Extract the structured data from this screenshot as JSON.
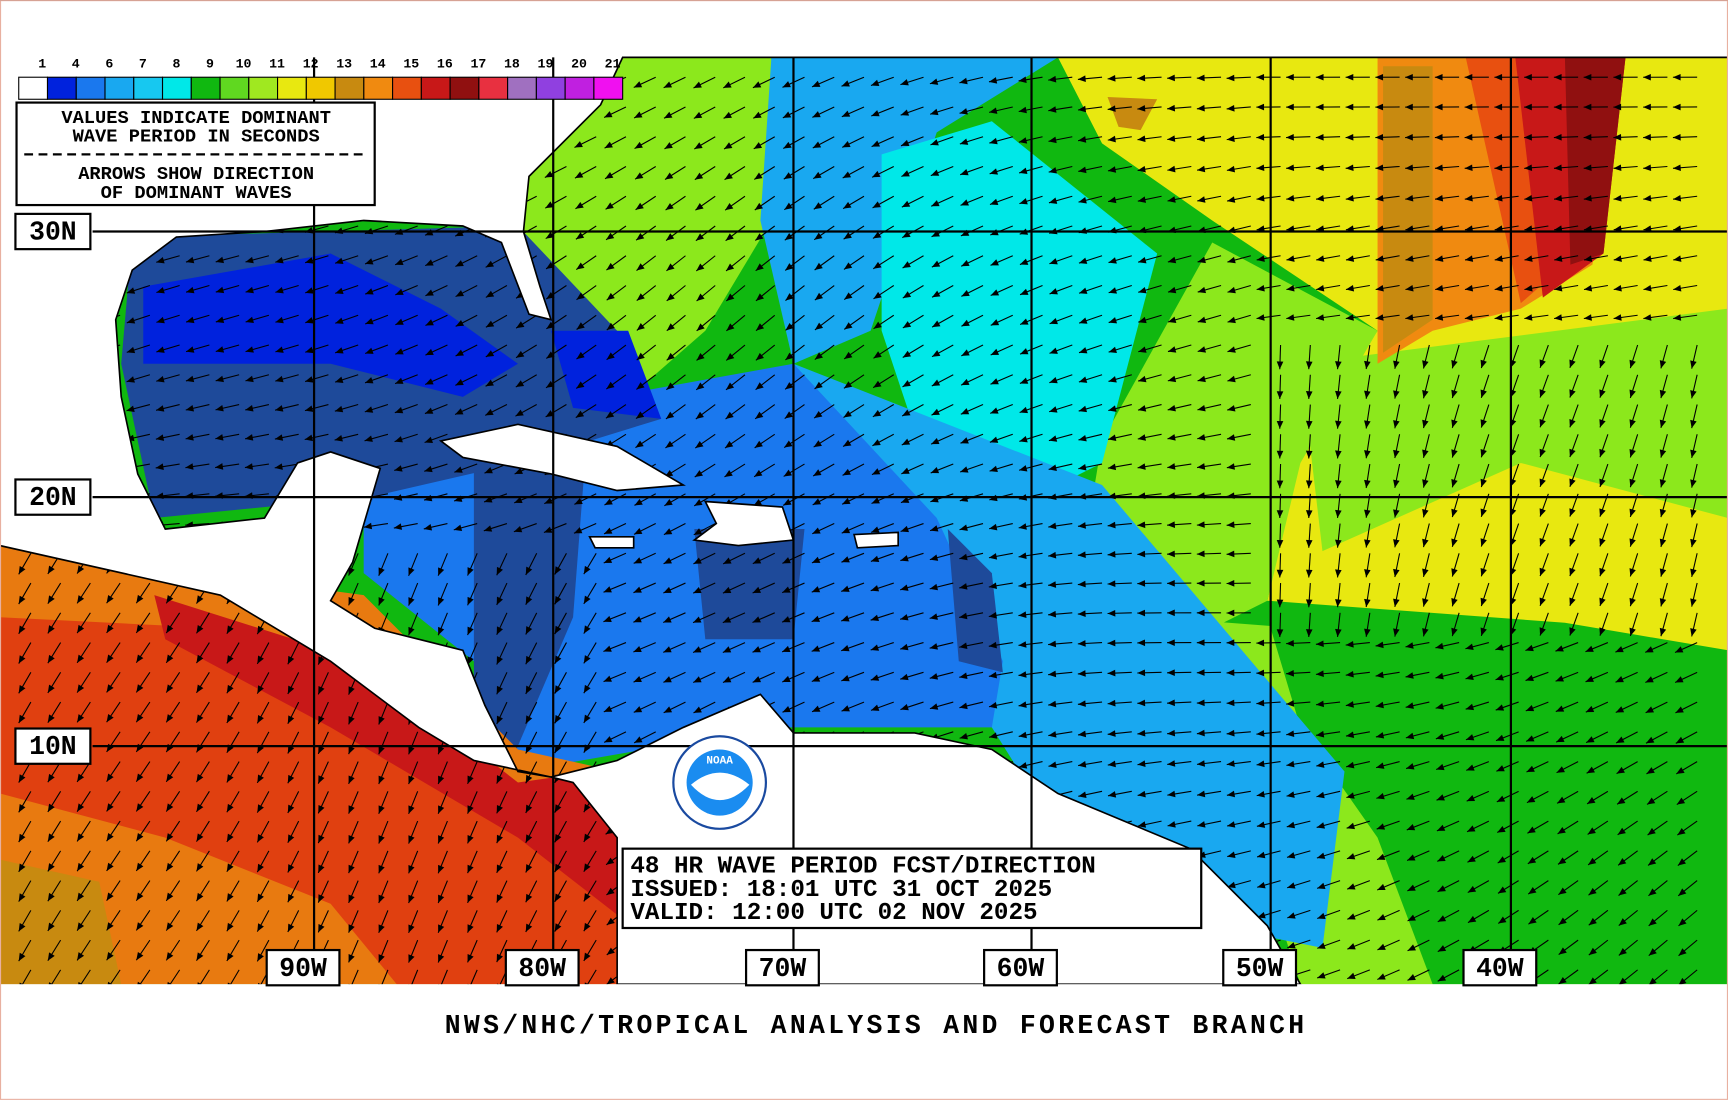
{
  "legend": {
    "labels": [
      "1",
      "4",
      "6",
      "7",
      "8",
      "9",
      "10",
      "11",
      "12",
      "13",
      "14",
      "15",
      "16",
      "17",
      "18",
      "19",
      "20",
      "21"
    ],
    "colors": [
      "#ffffff",
      "#0022dd",
      "#1a78ee",
      "#19a8f0",
      "#17c8f0",
      "#00e8e8",
      "#10b810",
      "#60d820",
      "#a0e820",
      "#e8e810",
      "#f0c800",
      "#c88a10",
      "#f08a10",
      "#e85010",
      "#c81818",
      "#901010",
      "#e83040",
      "#a070c0",
      "#9040e0",
      "#c020e0",
      "#f010f0"
    ]
  },
  "info_box": [
    "VALUES INDICATE DOMINANT",
    "WAVE PERIOD IN SECONDS",
    "ARROWS SHOW DIRECTION",
    "OF DOMINANT WAVES"
  ],
  "latitudes": [
    "30N",
    "20N",
    "10N"
  ],
  "longitudes": [
    "90W",
    "80W",
    "70W",
    "60W",
    "50W",
    "40W"
  ],
  "forecast_box": [
    "48 HR WAVE PERIOD FCST/DIRECTION",
    "ISSUED: 18:01 UTC 31 OCT 2025",
    "VALID:  12:00 UTC 02 NOV 2025"
  ],
  "logo": "NOAA",
  "footer": "NWS/NHC/TROPICAL ANALYSIS AND FORECAST BRANCH"
}
